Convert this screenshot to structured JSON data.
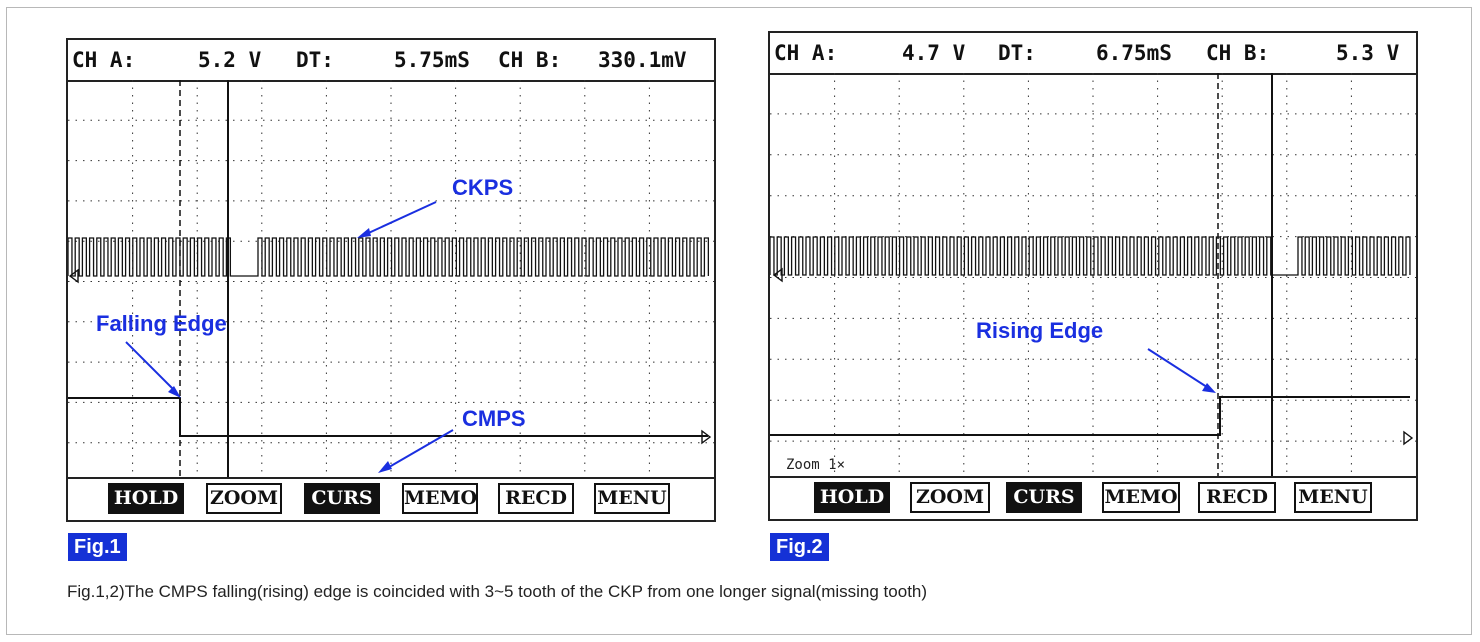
{
  "figures": [
    {
      "tag": "Fig.1",
      "readout": {
        "ch_a_label": "CH A:",
        "ch_a_value": "5.2 V",
        "dt_label": "DT:",
        "dt_value": "5.75mS",
        "ch_b_label": "CH B:",
        "ch_b_value": "330.1mV"
      },
      "annotations": {
        "ckps": "CKPS",
        "cmps": "CMPS",
        "edge": "Falling Edge"
      },
      "softkeys": [
        {
          "label": "HOLD",
          "active": true
        },
        {
          "label": "ZOOM",
          "active": false
        },
        {
          "label": "CURS",
          "active": true
        },
        {
          "label": "MEMO",
          "active": false
        },
        {
          "label": "RECD",
          "active": false
        },
        {
          "label": "MENU",
          "active": false
        }
      ]
    },
    {
      "tag": "Fig.2",
      "readout": {
        "ch_a_label": "CH A:",
        "ch_a_value": "4.7 V",
        "dt_label": "DT:",
        "dt_value": "6.75mS",
        "ch_b_label": "CH B:",
        "ch_b_value": "5.3 V"
      },
      "annotations": {
        "edge": "Rising Edge",
        "zoom": "Zoom 1×"
      },
      "softkeys": [
        {
          "label": "HOLD",
          "active": true
        },
        {
          "label": "ZOOM",
          "active": false
        },
        {
          "label": "CURS",
          "active": true
        },
        {
          "label": "MEMO",
          "active": false
        },
        {
          "label": "RECD",
          "active": false
        },
        {
          "label": "MENU",
          "active": false
        }
      ]
    }
  ],
  "caption": "Fig.1,2)The CMPS falling(rising) edge is coincided with 3~5 tooth of the CKP from one longer signal(missing tooth)",
  "colors": {
    "annotation": "#1a2fe0",
    "tag_bg": "#1531d6",
    "trace": "#111111"
  }
}
